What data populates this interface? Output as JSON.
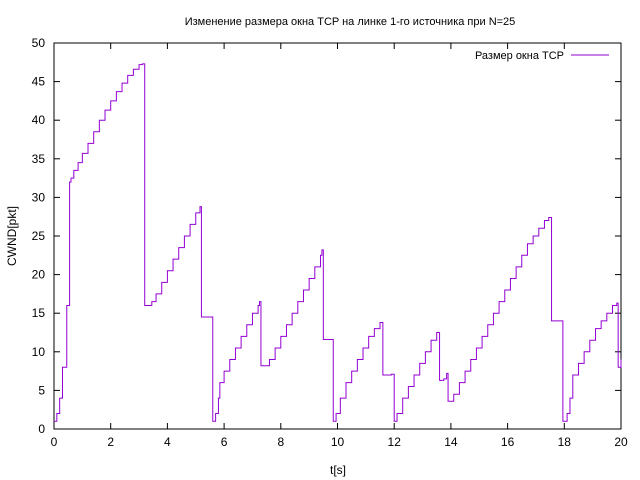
{
  "chart_data": {
    "type": "line",
    "title": "Изменение размера окна TCP на линке 1-го источника при N=25",
    "xlabel": "t[s]",
    "ylabel": "CWND[pkt]",
    "xlim": [
      0,
      20
    ],
    "ylim": [
      0,
      50
    ],
    "x_ticks": [
      0,
      2,
      4,
      6,
      8,
      10,
      12,
      14,
      16,
      18,
      20
    ],
    "y_ticks": [
      0,
      5,
      10,
      15,
      20,
      25,
      30,
      35,
      40,
      45,
      50
    ],
    "grid": false,
    "legend_position": "top-right",
    "series": [
      {
        "name": "Размер окна TCP",
        "color": "#9400d3",
        "x": [
          0.0,
          0.1,
          0.2,
          0.3,
          0.45,
          0.55,
          0.6,
          0.7,
          0.85,
          1.0,
          1.2,
          1.4,
          1.6,
          1.8,
          2.0,
          2.2,
          2.4,
          2.6,
          2.8,
          3.0,
          3.12,
          3.2,
          3.45,
          3.6,
          3.8,
          4.0,
          4.2,
          4.4,
          4.6,
          4.8,
          5.0,
          5.15,
          5.2,
          5.55,
          5.6,
          5.7,
          5.8,
          5.85,
          6.0,
          6.2,
          6.4,
          6.6,
          6.8,
          7.0,
          7.2,
          7.25,
          7.3,
          7.5,
          7.6,
          7.8,
          8.0,
          8.2,
          8.4,
          8.6,
          8.8,
          9.0,
          9.2,
          9.4,
          9.45,
          9.5,
          9.8,
          9.85,
          9.95,
          10.1,
          10.3,
          10.5,
          10.7,
          10.9,
          11.1,
          11.3,
          11.5,
          11.6,
          11.9,
          12.0,
          12.1,
          12.3,
          12.5,
          12.7,
          12.9,
          13.1,
          13.3,
          13.5,
          13.6,
          13.75,
          13.85,
          13.9,
          14.1,
          14.3,
          14.5,
          14.7,
          14.9,
          15.1,
          15.3,
          15.5,
          15.7,
          15.9,
          16.1,
          16.3,
          16.5,
          16.7,
          16.9,
          17.1,
          17.3,
          17.45,
          17.55,
          17.9,
          17.95,
          18.1,
          18.2,
          18.3,
          18.5,
          18.7,
          18.9,
          19.1,
          19.3,
          19.5,
          19.7,
          19.85,
          19.9,
          19.95,
          20.0
        ],
        "y": [
          1,
          2,
          4,
          8,
          16,
          32,
          32.5,
          33.5,
          34.5,
          35.7,
          37,
          38.5,
          40,
          41.3,
          42.5,
          43.7,
          44.8,
          45.8,
          46.6,
          47.2,
          47.3,
          16,
          16.5,
          17.5,
          19,
          20.5,
          22,
          23.5,
          25,
          26.5,
          28,
          28.8,
          14.5,
          14.5,
          1,
          2,
          4,
          6,
          7.5,
          9,
          10.5,
          12,
          13.5,
          15,
          16,
          16.5,
          8.2,
          8.2,
          9,
          10.5,
          12,
          13.5,
          15,
          16.5,
          18,
          19.5,
          21,
          22.5,
          23.2,
          11.6,
          11.6,
          1,
          2,
          4,
          6,
          7.5,
          9,
          10.5,
          12,
          13,
          13.8,
          7,
          7.1,
          1,
          2,
          4,
          5.5,
          7,
          8.5,
          10,
          11.5,
          12.5,
          6.3,
          6.5,
          7.2,
          3.6,
          4.5,
          6,
          7.5,
          9,
          10.5,
          12,
          13.5,
          15,
          16.5,
          18,
          19.5,
          21,
          22.5,
          24,
          25,
          26,
          27,
          27.4,
          14,
          14,
          1,
          2,
          4,
          7,
          8.5,
          10,
          11.5,
          13,
          14,
          15,
          16,
          16.3,
          8,
          8,
          9
        ]
      }
    ]
  }
}
